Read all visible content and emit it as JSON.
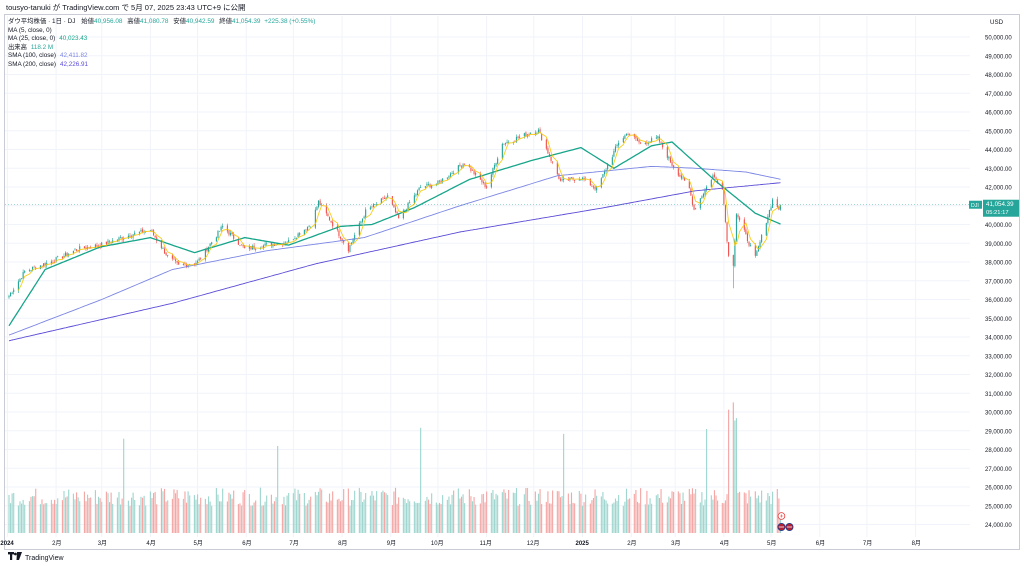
{
  "header": {
    "publish_line": "tousyo-tanuki が TradingView.com で 5月 07, 2025 23:43 UTC+9 に公開"
  },
  "legend": {
    "title": "ダウ平均株価 · 1日 · DJ",
    "open_label": "始値",
    "open_value": "40,956.08",
    "high_label": "高値",
    "high_value": "41,080.78",
    "low_label": "安値",
    "low_value": "40,942.59",
    "close_label": "終値",
    "close_value": "41,054.39",
    "change": "+225.38 (+0.55%)",
    "indicators": [
      {
        "label": "MA (5, close, 0)",
        "value": "",
        "color": "#f7c600"
      },
      {
        "label": "MA (25, close, 0)",
        "value": "40,023.43",
        "color": "#17a58a"
      },
      {
        "label": "出来高",
        "value": "118.2 M",
        "color": "#26a69a"
      },
      {
        "label": "SMA (100, close)",
        "value": "42,411.82",
        "color": "#7b86e3"
      },
      {
        "label": "SMA (200, close)",
        "value": "42,226.91",
        "color": "#5a4bd6"
      }
    ]
  },
  "footer": {
    "brand": "TradingView"
  },
  "price_tag": {
    "symbol": "DJI",
    "value": "41,054.39",
    "countdown": "05:21:17"
  },
  "colors": {
    "up": "#26a69a",
    "down": "#ef5350",
    "vol_up": "#9fd6cf",
    "vol_down": "#f4a7a5",
    "ma5": "#f7c600",
    "ma25": "#17a58a",
    "sma100": "#7b86e3",
    "sma200": "#5a4bd6",
    "grid": "#f0f3fa",
    "axis_text": "#131722"
  },
  "chart_data": {
    "type": "candlestick",
    "currency_label": "USD",
    "y_ticks": [
      "50,000.00",
      "49,000.00",
      "48,000.00",
      "47,000.00",
      "46,000.00",
      "45,000.00",
      "44,000.00",
      "43,000.00",
      "42,000.00",
      "41,000.00",
      "40,000.00",
      "39,000.00",
      "38,000.00",
      "37,000.00",
      "36,000.00",
      "35,000.00",
      "34,000.00",
      "33,000.00",
      "32,000.00",
      "31,000.00",
      "30,000.00",
      "29,000.00",
      "28,000.00",
      "27,000.00",
      "26,000.00",
      "25,000.00",
      "24,000.00"
    ],
    "ylim": [
      23600,
      50800
    ],
    "x_ticks": [
      "2024",
      "2月",
      "3月",
      "4月",
      "5月",
      "6月",
      "7月",
      "8月",
      "9月",
      "10月",
      "11月",
      "12月",
      "2025",
      "2月",
      "3月",
      "4月",
      "5月",
      "6月",
      "7月",
      "8月"
    ],
    "price_anchors": [
      [
        "2024-01-02",
        36200
      ],
      [
        "2024-01-12",
        37500
      ],
      [
        "2024-01-31",
        38100
      ],
      [
        "2024-02-15",
        38700
      ],
      [
        "2024-02-29",
        38900
      ],
      [
        "2024-03-21",
        39500
      ],
      [
        "2024-04-01",
        39700
      ],
      [
        "2024-04-12",
        38300
      ],
      [
        "2024-04-19",
        37800
      ],
      [
        "2024-05-01",
        38000
      ],
      [
        "2024-05-17",
        39900
      ],
      [
        "2024-05-31",
        38700
      ],
      [
        "2024-06-07",
        38800
      ],
      [
        "2024-06-28",
        39100
      ],
      [
        "2024-07-12",
        40000
      ],
      [
        "2024-07-17",
        41200
      ],
      [
        "2024-08-05",
        38700
      ],
      [
        "2024-08-16",
        40700
      ],
      [
        "2024-08-30",
        41500
      ],
      [
        "2024-09-06",
        40300
      ],
      [
        "2024-09-20",
        42000
      ],
      [
        "2024-10-01",
        42200
      ],
      [
        "2024-10-18",
        43300
      ],
      [
        "2024-11-01",
        42000
      ],
      [
        "2024-11-11",
        44300
      ],
      [
        "2024-11-29",
        44900
      ],
      [
        "2024-12-04",
        45000
      ],
      [
        "2024-12-18",
        42300
      ],
      [
        "2024-12-31",
        42500
      ],
      [
        "2025-01-10",
        41900
      ],
      [
        "2025-01-24",
        44400
      ],
      [
        "2025-01-30",
        44900
      ],
      [
        "2025-02-07",
        44300
      ],
      [
        "2025-02-18",
        44600
      ],
      [
        "2025-02-27",
        43200
      ],
      [
        "2025-03-10",
        41900
      ],
      [
        "2025-03-13",
        40800
      ],
      [
        "2025-03-25",
        42600
      ],
      [
        "2025-03-31",
        42000
      ],
      [
        "2025-04-04",
        38300
      ],
      [
        "2025-04-07",
        37900
      ],
      [
        "2025-04-09",
        40600
      ],
      [
        "2025-04-21",
        38200
      ],
      [
        "2025-04-28",
        40200
      ],
      [
        "2025-05-02",
        41300
      ],
      [
        "2025-05-06",
        40850
      ],
      [
        "2025-05-07",
        41054
      ]
    ],
    "low_extreme": {
      "date": "2025-04-07",
      "value": 36600
    },
    "overlays": {
      "ma25_anchors": [
        [
          "2024-01-02",
          34600
        ],
        [
          "2024-01-25",
          37600
        ],
        [
          "2024-02-29",
          38800
        ],
        [
          "2024-04-01",
          39300
        ],
        [
          "2024-04-29",
          38500
        ],
        [
          "2024-05-31",
          39300
        ],
        [
          "2024-06-28",
          38900
        ],
        [
          "2024-07-31",
          39900
        ],
        [
          "2024-08-20",
          40000
        ],
        [
          "2024-09-16",
          40900
        ],
        [
          "2024-10-21",
          42400
        ],
        [
          "2024-11-29",
          43400
        ],
        [
          "2024-12-31",
          44100
        ],
        [
          "2025-01-21",
          43000
        ],
        [
          "2025-02-14",
          44200
        ],
        [
          "2025-02-27",
          44400
        ],
        [
          "2025-03-27",
          42300
        ],
        [
          "2025-04-21",
          40600
        ],
        [
          "2025-05-07",
          40023
        ]
      ],
      "sma100_anchors": [
        [
          "2024-01-02",
          34100
        ],
        [
          "2024-03-01",
          36000
        ],
        [
          "2024-04-15",
          37600
        ],
        [
          "2024-06-14",
          38600
        ],
        [
          "2024-08-15",
          39300
        ],
        [
          "2024-10-15",
          41000
        ],
        [
          "2024-12-16",
          42600
        ],
        [
          "2025-02-14",
          43100
        ],
        [
          "2025-03-14",
          43000
        ],
        [
          "2025-04-15",
          42800
        ],
        [
          "2025-05-07",
          42412
        ]
      ],
      "sma200_anchors": [
        [
          "2024-01-02",
          33800
        ],
        [
          "2024-04-15",
          35800
        ],
        [
          "2024-07-15",
          37900
        ],
        [
          "2024-10-15",
          39600
        ],
        [
          "2025-01-15",
          40900
        ],
        [
          "2025-03-14",
          41800
        ],
        [
          "2025-05-07",
          42227
        ]
      ]
    },
    "volume": {
      "ylim_millions": [
        0,
        1100
      ],
      "typical_millions": 300,
      "spikes_millions": [
        [
          "2024-03-15",
          780
        ],
        [
          "2024-06-21",
          720
        ],
        [
          "2024-09-20",
          870
        ],
        [
          "2024-12-20",
          820
        ],
        [
          "2025-03-21",
          860
        ],
        [
          "2025-04-04",
          1020
        ],
        [
          "2025-04-07",
          1080
        ],
        [
          "2025-04-08",
          930
        ],
        [
          "2025-04-09",
          950
        ]
      ],
      "last_millions": 118.2
    }
  }
}
